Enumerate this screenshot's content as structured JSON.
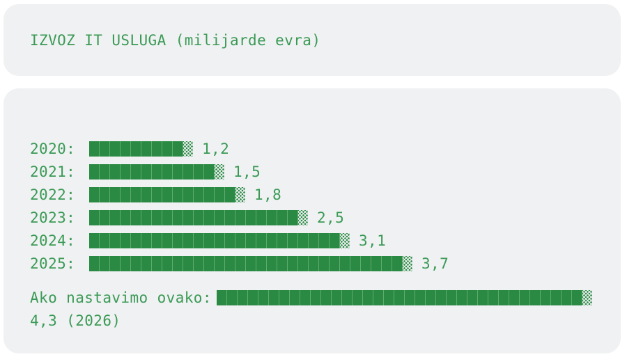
{
  "colors": {
    "page_bg": "#ffffff",
    "card_bg": "#f0f1f3",
    "green_text": "#3a9a55",
    "bar_fill": "#2a8a43",
    "bar_separator": "#5fab70"
  },
  "title_card": {
    "title": "IZVOZ IT USLUGA (milijarde evra)"
  },
  "chart_data": {
    "type": "bar",
    "orientation": "horizontal",
    "title": "IZVOZ IT USLUGA (milijarde evra)",
    "unit": "milijarde evra",
    "grid": false,
    "legend": false,
    "categories": [
      "2020",
      "2021",
      "2022",
      "2023",
      "2024",
      "2025"
    ],
    "values": [
      1.2,
      1.5,
      1.8,
      2.5,
      3.1,
      3.7
    ],
    "rows": [
      {
        "label": "2020:",
        "value": 1.2,
        "value_label": "1,2",
        "full_cells": 9
      },
      {
        "label": "2021:",
        "value": 1.5,
        "value_label": "1,5",
        "full_cells": 12
      },
      {
        "label": "2022:",
        "value": 1.8,
        "value_label": "1,8",
        "full_cells": 14
      },
      {
        "label": "2023:",
        "value": 2.5,
        "value_label": "2,5",
        "full_cells": 20
      },
      {
        "label": "2024:",
        "value": 3.1,
        "value_label": "3,1",
        "full_cells": 24
      },
      {
        "label": "2025:",
        "value": 3.7,
        "value_label": "3,7",
        "full_cells": 30
      }
    ],
    "projection": {
      "label": "Ako nastavimo ovako:",
      "value": 4.3,
      "value_label": "4,3 (2026)",
      "year": "2026",
      "full_cells": 35
    }
  }
}
